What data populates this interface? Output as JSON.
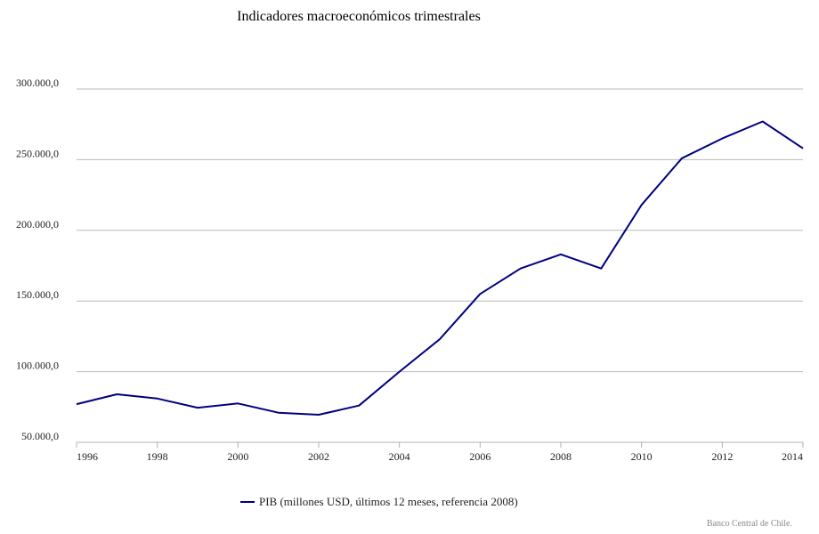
{
  "chart_data": {
    "type": "line",
    "title": "Indicadores macroeconómicos trimestrales",
    "xlabel": "",
    "ylabel": "",
    "x": [
      1996,
      1997,
      1998,
      1999,
      2000,
      2001,
      2002,
      2003,
      2004,
      2005,
      2006,
      2007,
      2008,
      2009,
      2010,
      2011,
      2012,
      2013,
      2014
    ],
    "series": [
      {
        "name": "PIB (millones USD, últimos 12 meses, referencia 2008)",
        "color": "#000080",
        "values": [
          77000,
          84000,
          81000,
          74500,
          77500,
          71000,
          69500,
          76000,
          100000,
          123000,
          155000,
          173000,
          183000,
          173000,
          218000,
          251000,
          265000,
          277000,
          258000
        ]
      }
    ],
    "ylim": [
      50000,
      300000
    ],
    "yticks": [
      50000,
      100000,
      150000,
      200000,
      250000,
      300000
    ],
    "ytick_labels": [
      "50.000,0",
      "100.000,0",
      "150.000,0",
      "200.000,0",
      "250.000,0",
      "300.000,0"
    ],
    "xticks": [
      1996,
      1998,
      2000,
      2002,
      2004,
      2006,
      2008,
      2010,
      2012,
      2014
    ],
    "xtick_labels": [
      "1996",
      "1998",
      "2000",
      "2002",
      "2004",
      "2006",
      "2008",
      "2010",
      "2012",
      "2014"
    ],
    "grid": true,
    "legend_position": "bottom-center"
  },
  "credit": "Banco Central de Chile."
}
